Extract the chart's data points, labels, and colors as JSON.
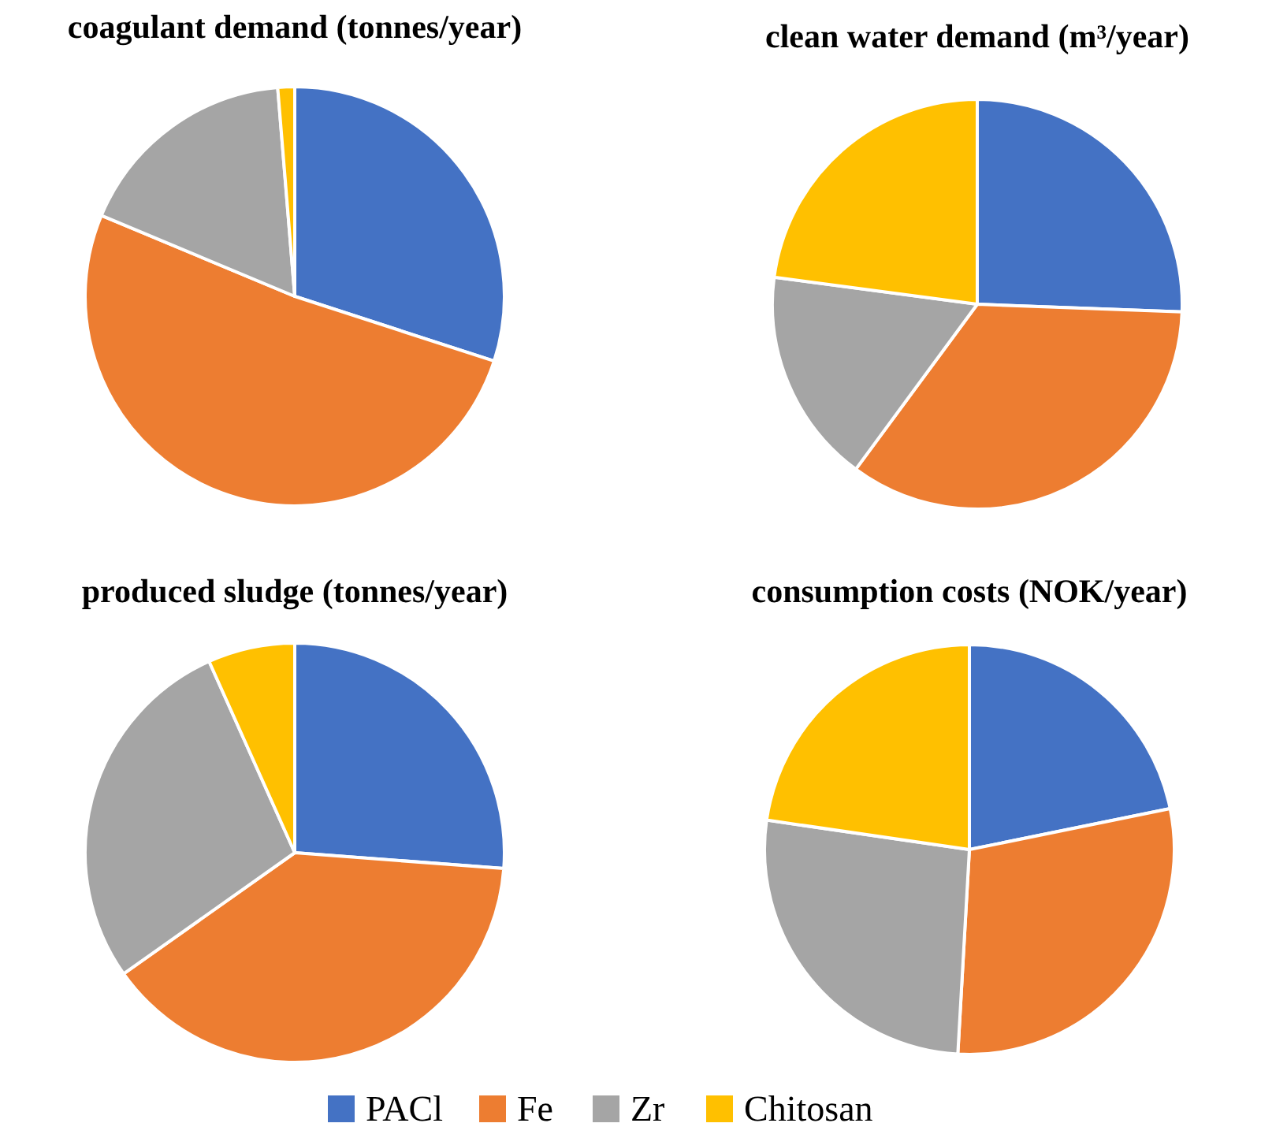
{
  "chart_data": [
    {
      "type": "pie",
      "title": "coagulant demand (tonnes/year)",
      "categories": [
        "PACl",
        "Fe",
        "Zr",
        "Chitosan"
      ],
      "values": [
        30,
        51.3,
        17.4,
        1.3
      ],
      "colors": [
        "#4472c4",
        "#ed7d31",
        "#a5a5a5",
        "#ffc000"
      ],
      "legend": "bottom"
    },
    {
      "type": "pie",
      "title": "clean water demand (m³/year)",
      "categories": [
        null,
        null,
        null,
        null
      ],
      "values": [
        25.6,
        34.5,
        17,
        22.9
      ],
      "colors": [
        "#4472c4",
        "#ed7d31",
        "#a5a5a5",
        "#ffc000"
      ]
    },
    {
      "type": "pie",
      "title": "produced sludge (tonnes/year)",
      "categories": [
        null,
        null,
        null,
        null
      ],
      "values": [
        26.2,
        39,
        28.1,
        6.7
      ],
      "colors": [
        "#4472c4",
        "#ed7d31",
        "#a5a5a5",
        "#ffc000"
      ]
    },
    {
      "type": "pie",
      "title": "consumption costs (NOK/year)",
      "categories": [
        null,
        null,
        null,
        null
      ],
      "values": [
        21.8,
        29.1,
        26.4,
        22.7
      ],
      "colors": [
        "#4472c4",
        "#ed7d31",
        "#a5a5a5",
        "#ffc000"
      ]
    }
  ]
}
